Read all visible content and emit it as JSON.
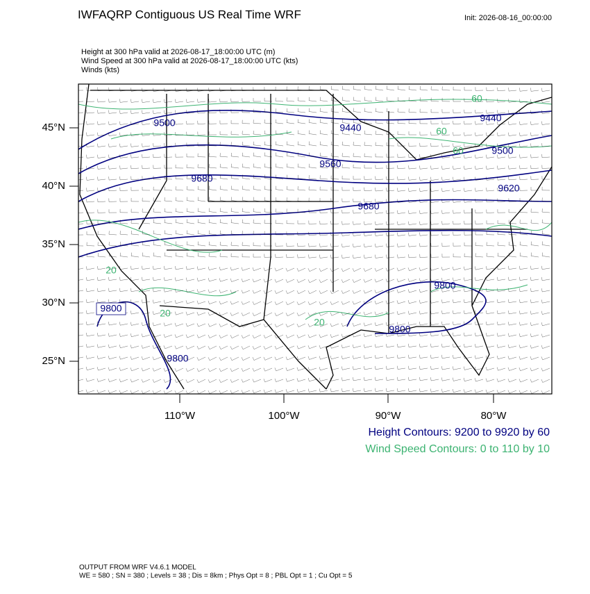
{
  "header": {
    "title": "IWFAQRP Contiguous US Real Time WRF",
    "init": "Init: 2026-08-16_00:00:00"
  },
  "fields": [
    "Height at 300 hPa valid at 2026-08-17_18:00:00 UTC   (m)",
    "Wind Speed at 300 hPa valid at 2026-08-17_18:00:00 UTC   (kts)",
    "Winds   (kts)"
  ],
  "map": {
    "lat_labels": [
      "45°N",
      "40°N",
      "35°N",
      "30°N",
      "25°N"
    ],
    "lon_labels": [
      "110°W",
      "100°W",
      "90°W",
      "80°W"
    ],
    "height_labels": [
      "9500",
      "9440",
      "9440",
      "9560",
      "9500",
      "9680",
      "9620",
      "9680",
      "9800",
      "9800",
      "9800",
      "9800"
    ],
    "speed_labels": [
      "60",
      "60",
      "60",
      "20",
      "20",
      "20"
    ]
  },
  "legend": [
    "Height Contours: 9200 to 9920 by 60",
    "Wind Speed Contours: 0 to 110 by 10"
  ],
  "footer": [
    "OUTPUT FROM WRF V4.6.1 MODEL",
    "WE = 580 ; SN = 380 ; Levels = 38 ; Dis = 8km ; Phys Opt = 8 ; PBL Opt = 1 ; Cu Opt = 5"
  ]
}
